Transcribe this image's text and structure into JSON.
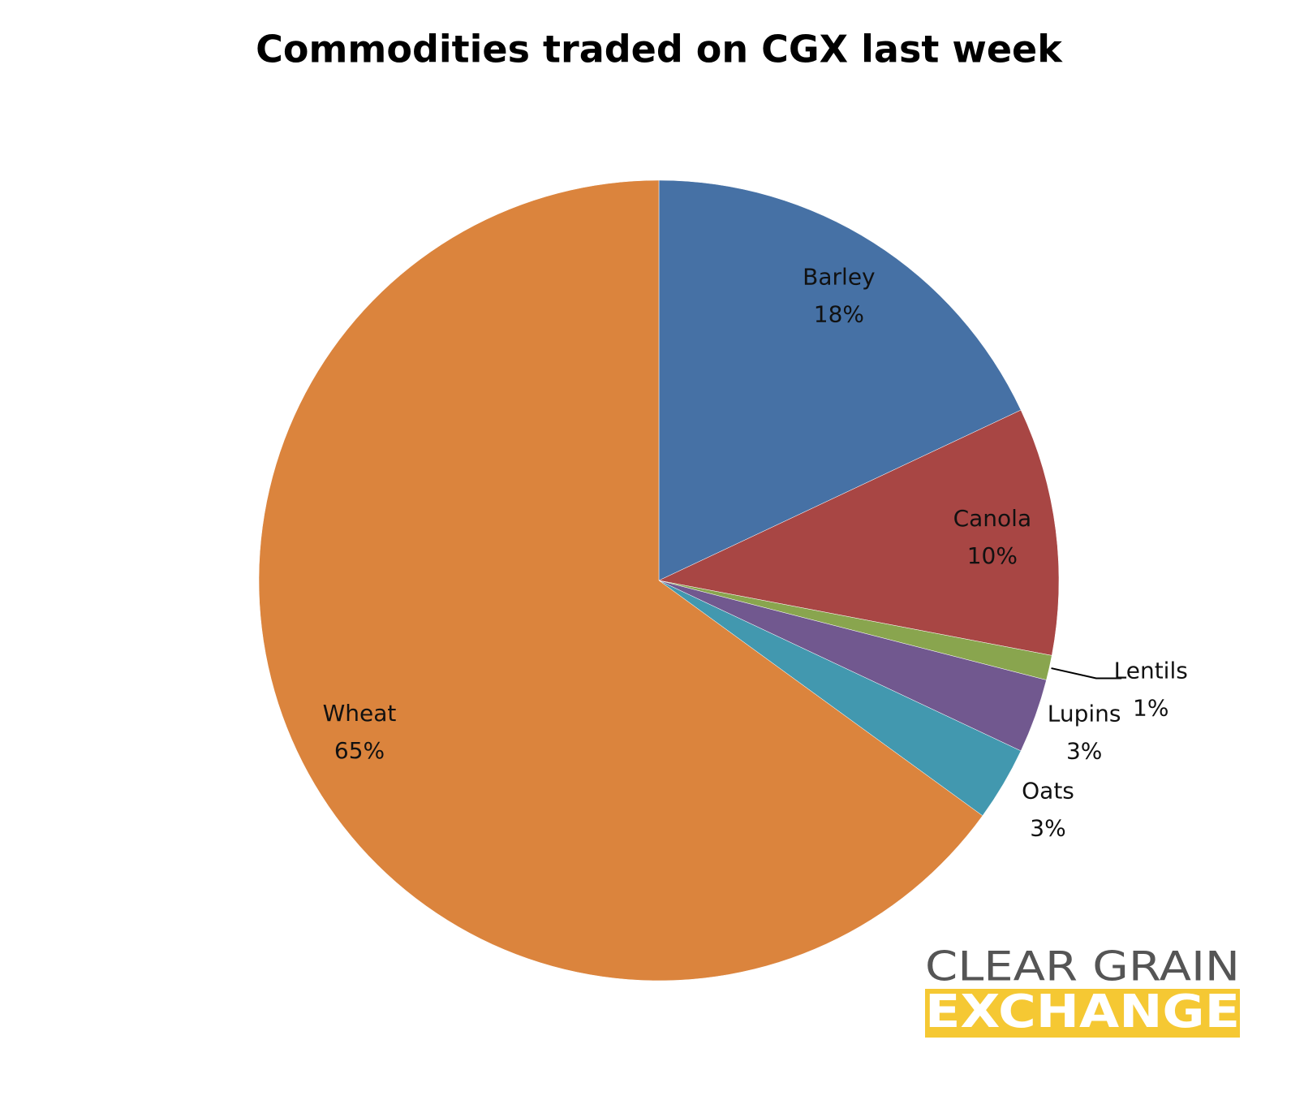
{
  "chart_data": {
    "type": "pie",
    "title": "Commodities traded on CGX last week",
    "categories": [
      "Barley",
      "Canola",
      "Lentils",
      "Lupins",
      "Oats",
      "Wheat"
    ],
    "values": [
      18,
      10,
      1,
      3,
      3,
      65
    ],
    "value_labels": [
      "18%",
      "10%",
      "1%",
      "3%",
      "3%",
      "65%"
    ],
    "colors": [
      "#4671a5",
      "#a84644",
      "#89a54e",
      "#71588f",
      "#4298af",
      "#db843d"
    ]
  },
  "logo": {
    "line1": "CLEAR GRAIN",
    "line2": "EXCHANGE"
  }
}
